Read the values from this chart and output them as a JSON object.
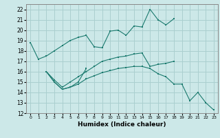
{
  "xlabel": "Humidex (Indice chaleur)",
  "xlim": [
    -0.5,
    23.5
  ],
  "ylim": [
    12,
    22.5
  ],
  "yticks": [
    12,
    13,
    14,
    15,
    16,
    17,
    18,
    19,
    20,
    21,
    22
  ],
  "xticks": [
    0,
    1,
    2,
    3,
    4,
    5,
    6,
    7,
    8,
    9,
    10,
    11,
    12,
    13,
    14,
    15,
    16,
    17,
    18,
    19,
    20,
    21,
    22,
    23
  ],
  "background_color": "#cce8e8",
  "grid_color": "#aacfcf",
  "line_color": "#1a7a6e",
  "line1_x": [
    0,
    1,
    2,
    3,
    4,
    5,
    6,
    7,
    8,
    9,
    10,
    11,
    12,
    13,
    14,
    15,
    16,
    17,
    18
  ],
  "line1_y": [
    18.8,
    17.2,
    17.5,
    18.0,
    18.5,
    19.0,
    19.3,
    19.5,
    18.4,
    18.3,
    19.9,
    20.0,
    19.5,
    20.4,
    20.3,
    22.0,
    21.0,
    20.5,
    21.1
  ],
  "line2_x": [
    2,
    3,
    4,
    5,
    6,
    7,
    8,
    9,
    10,
    11,
    12,
    13,
    14,
    15,
    16,
    17,
    18,
    19,
    20,
    21,
    22,
    23
  ],
  "line2_y": [
    16.0,
    15.0,
    14.3,
    14.5,
    14.8,
    15.3,
    15.6,
    15.9,
    16.1,
    16.3,
    16.4,
    16.5,
    16.5,
    16.3,
    15.8,
    15.5,
    14.8,
    14.8,
    13.2,
    14.0,
    13.0,
    12.3
  ],
  "line3_x": [
    2,
    3,
    4,
    5,
    6,
    7
  ],
  "line3_y": [
    16.0,
    15.0,
    14.3,
    14.5,
    15.0,
    16.3
  ],
  "line4_x": [
    2,
    3,
    4,
    5,
    6,
    7,
    8,
    9,
    10,
    11,
    12,
    13,
    14,
    15,
    16,
    17,
    18
  ],
  "line4_y": [
    16.0,
    15.2,
    14.5,
    15.0,
    15.5,
    16.0,
    16.5,
    17.0,
    17.2,
    17.4,
    17.5,
    17.7,
    17.8,
    16.5,
    16.7,
    16.8,
    17.0
  ]
}
